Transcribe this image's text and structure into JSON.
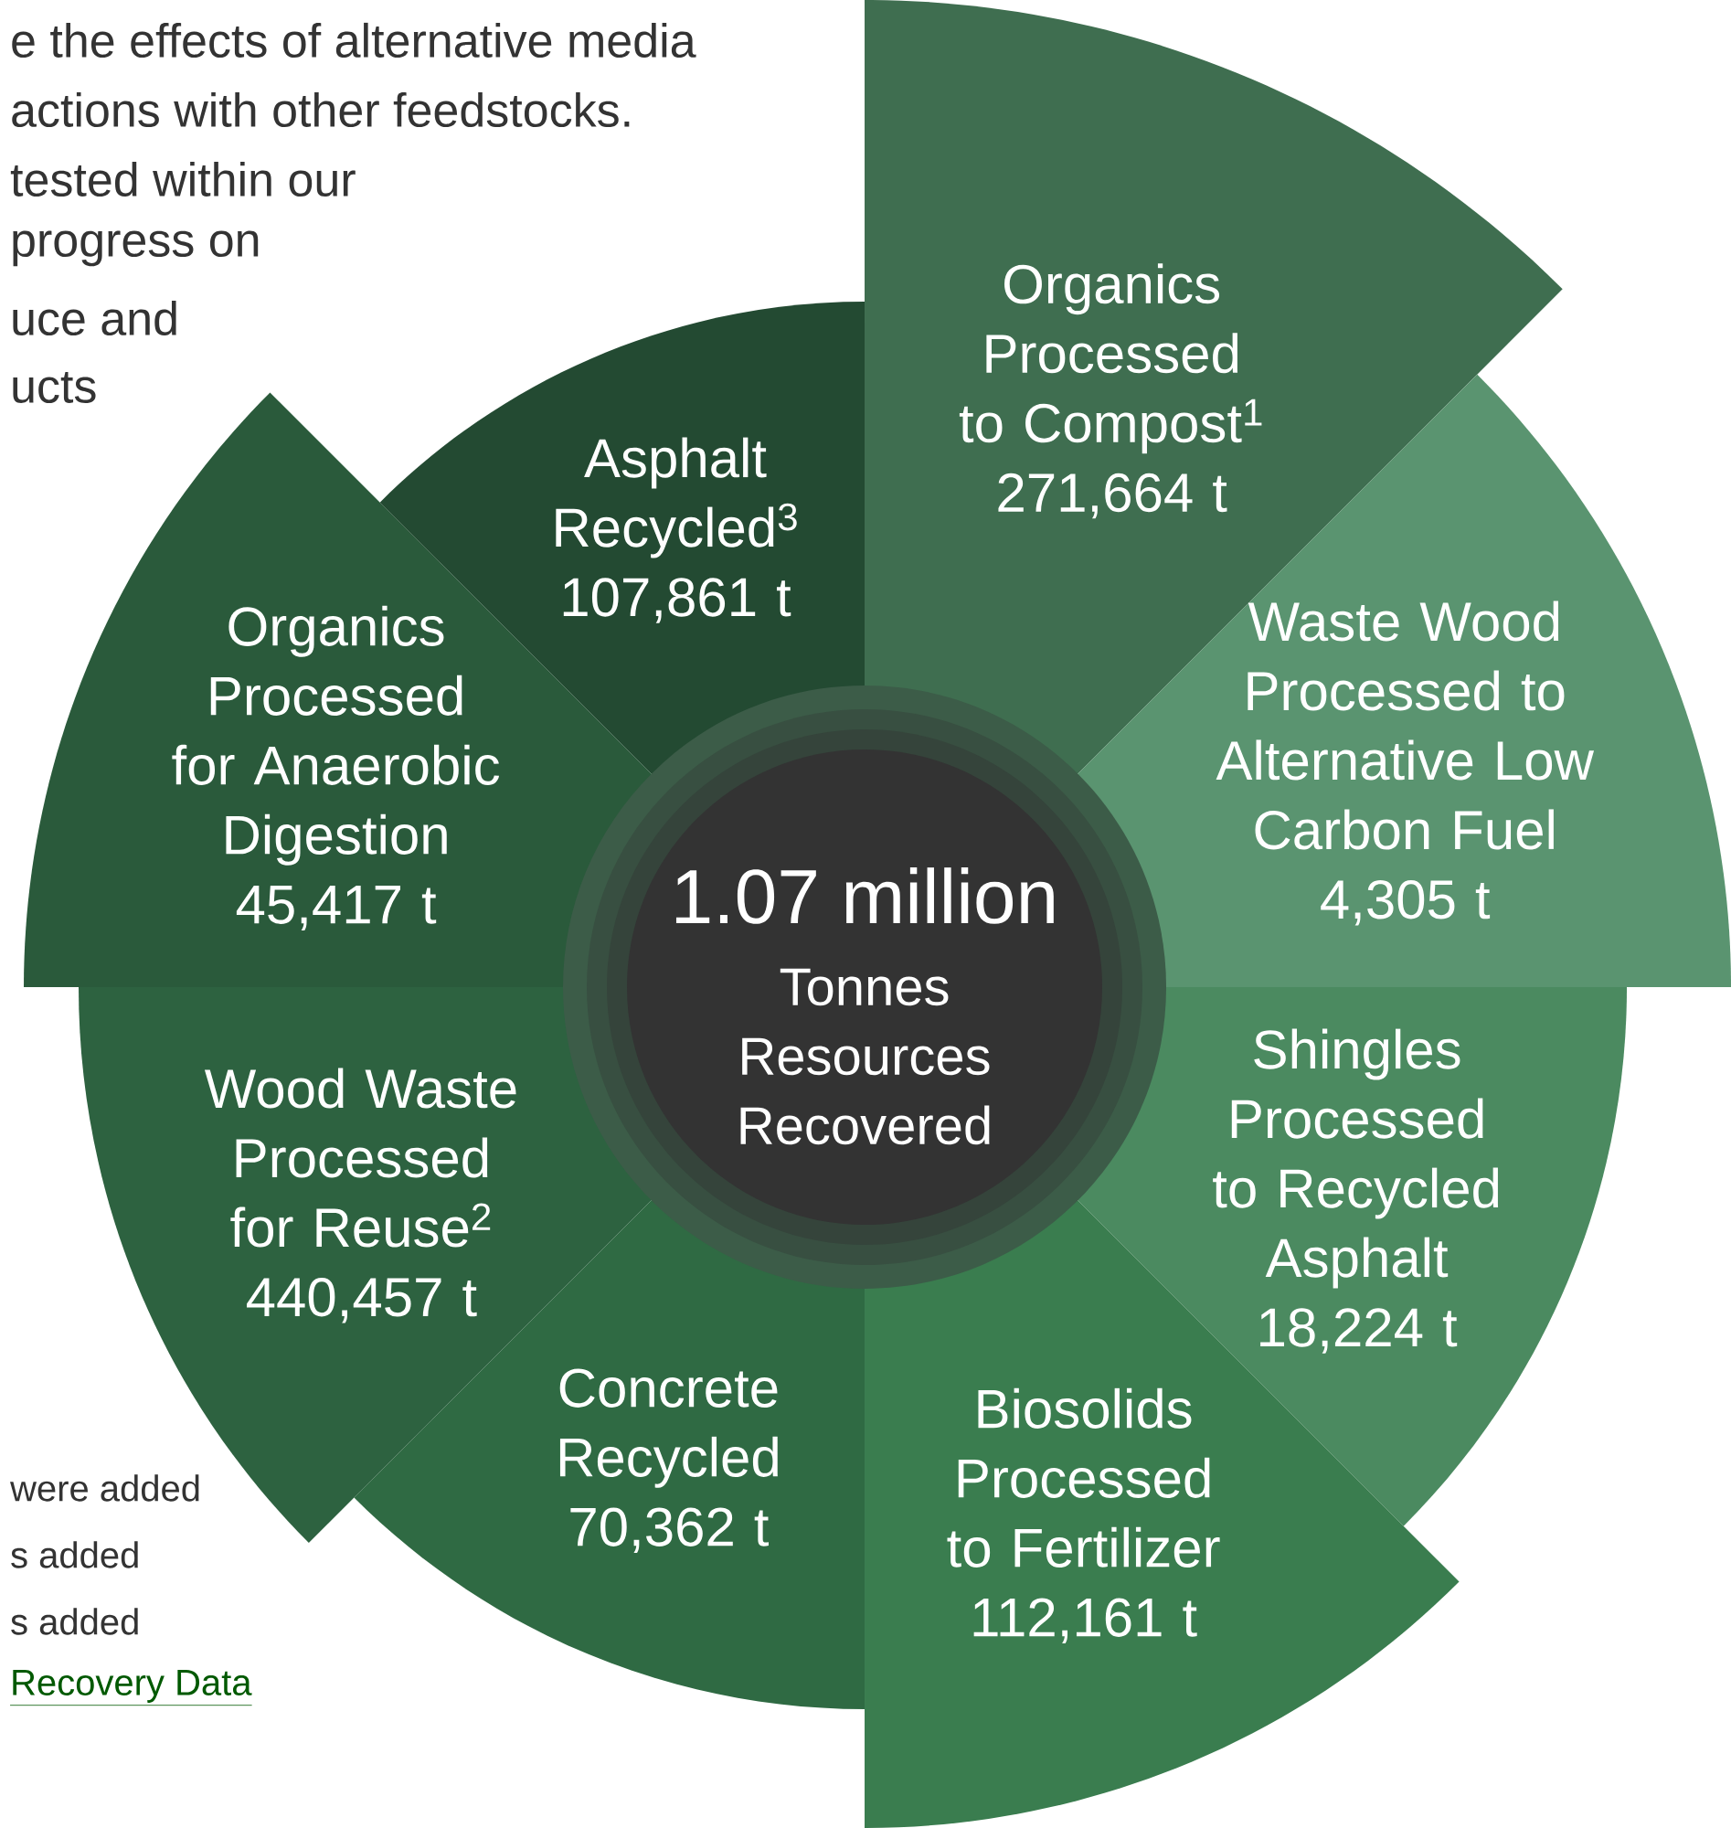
{
  "chart_data": {
    "type": "other",
    "title": "1.07 million",
    "subtitle": "Tonnes Resources Recovered",
    "categories": [
      "Organics Processed to Compost$^{1}$",
      "Waste Wood Processed to Alternative Low Carbon Fuel",
      "Shingles Processed to Recycled Asphalt",
      "Biosolids Processed to Fertilizer",
      "Concrete Recycled",
      "Wood Waste Processed for Reuse$^{2}$",
      "Organics Processed for Anaerobic Digestion",
      "Asphalt Recycled$^{3}$"
    ],
    "values": [
      271664,
      4305,
      18224,
      112161,
      70362,
      440457,
      45417,
      107861
    ],
    "value_labels": [
      "271,664 t",
      "4,305 t",
      "18,224 t",
      "112,161 t",
      "70,362 t",
      "440,457 t",
      "45,417 t",
      "107,861 t"
    ],
    "colors": [
      "#3f6e50",
      "#5a9470",
      "#4b8a60",
      "#3a7d4f",
      "#2f6a43",
      "#2d6240",
      "#2a5a3b",
      "#234a32"
    ],
    "annotations": [
      "e the effects of alternative media",
      "actions with other feedstocks.",
      "tested within our",
      "progress on",
      "uce and",
      "ucts",
      "were added",
      "s added",
      "s added",
      "Recovery Data"
    ]
  }
}
